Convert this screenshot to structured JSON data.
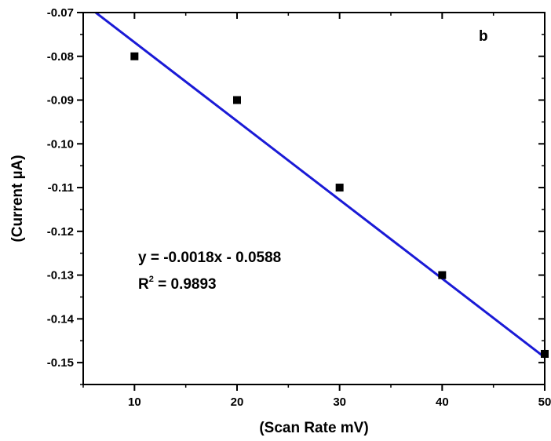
{
  "chart_data": {
    "type": "scatter",
    "panel_label": "b",
    "xlabel": "(Scan Rate mV)",
    "ylabel": "(Current µA)",
    "xlim": [
      5,
      50
    ],
    "ylim": [
      -0.155,
      -0.07
    ],
    "x_ticks": [
      10,
      20,
      30,
      40,
      50
    ],
    "x_tick_labels": [
      "10",
      "20",
      "30",
      "40",
      "50"
    ],
    "y_ticks": [
      -0.07,
      -0.08,
      -0.09,
      -0.1,
      -0.11,
      -0.12,
      -0.13,
      -0.14,
      -0.15
    ],
    "y_tick_labels": [
      "-0.07",
      "-0.08",
      "-0.09",
      "-0.10",
      "-0.11",
      "-0.12",
      "-0.13",
      "-0.14",
      "-0.15"
    ],
    "series": [
      {
        "marker": "square",
        "color": "#000000",
        "x": [
          10,
          20,
          30,
          40,
          50
        ],
        "y": [
          -0.08,
          -0.09,
          -0.11,
          -0.13,
          -0.148
        ]
      }
    ],
    "fit_line": {
      "color": "#1a1ad6",
      "slope": -0.0018,
      "intercept": -0.0588
    },
    "annotations": {
      "equation": "y = -0.0018x - 0.0588",
      "r_squared_prefix": "R",
      "r_squared_sup": "2",
      "r_squared_value": " = 0.9893"
    },
    "grid": false,
    "legend": "none"
  }
}
